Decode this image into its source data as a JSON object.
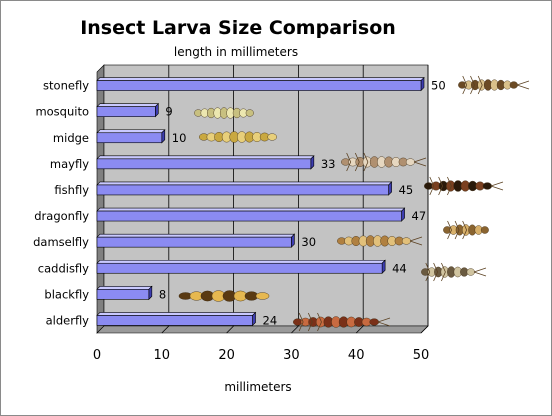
{
  "chart_data": {
    "type": "bar",
    "orientation": "horizontal",
    "title": "Insect Larva Size Comparison",
    "subtitle": "length in millimeters",
    "xlabel": "millimeters",
    "ylabel": "",
    "xlim": [
      0,
      50
    ],
    "x_ticks": [
      0,
      10,
      20,
      30,
      40,
      50
    ],
    "grid": true,
    "legend": "none",
    "categories": [
      "stonefly",
      "mosquito",
      "midge",
      "mayfly",
      "fishfly",
      "dragonfly",
      "damselfly",
      "caddisfly",
      "blackfly",
      "alderfly"
    ],
    "values": [
      50,
      9,
      10,
      33,
      45,
      47,
      30,
      44,
      8,
      24
    ],
    "data_labels": [
      "50",
      "9",
      "10",
      "33",
      "45",
      "47",
      "30",
      "44",
      "8",
      "24"
    ],
    "colors": {
      "bar_front": "#8b8bf2",
      "bar_top": "#c9c9ff",
      "bar_side": "#3d3db0",
      "plot_back": "#c3c3c3",
      "plot_floor": "#9a9a9a",
      "plot_wall": "#808080",
      "gridline": "#000000"
    }
  },
  "illustrations": [
    {
      "name": "stonefly-larva-photo"
    },
    {
      "name": "mosquito-larva-photo"
    },
    {
      "name": "midge-larva-photo"
    },
    {
      "name": "mayfly-larva-photo"
    },
    {
      "name": "fishfly-larva-photo"
    },
    {
      "name": "dragonfly-larva-photo"
    },
    {
      "name": "damselfly-larva-photo"
    },
    {
      "name": "caddisfly-larva-photo"
    },
    {
      "name": "blackfly-larva-photo"
    },
    {
      "name": "alderfly-larva-photo"
    }
  ]
}
